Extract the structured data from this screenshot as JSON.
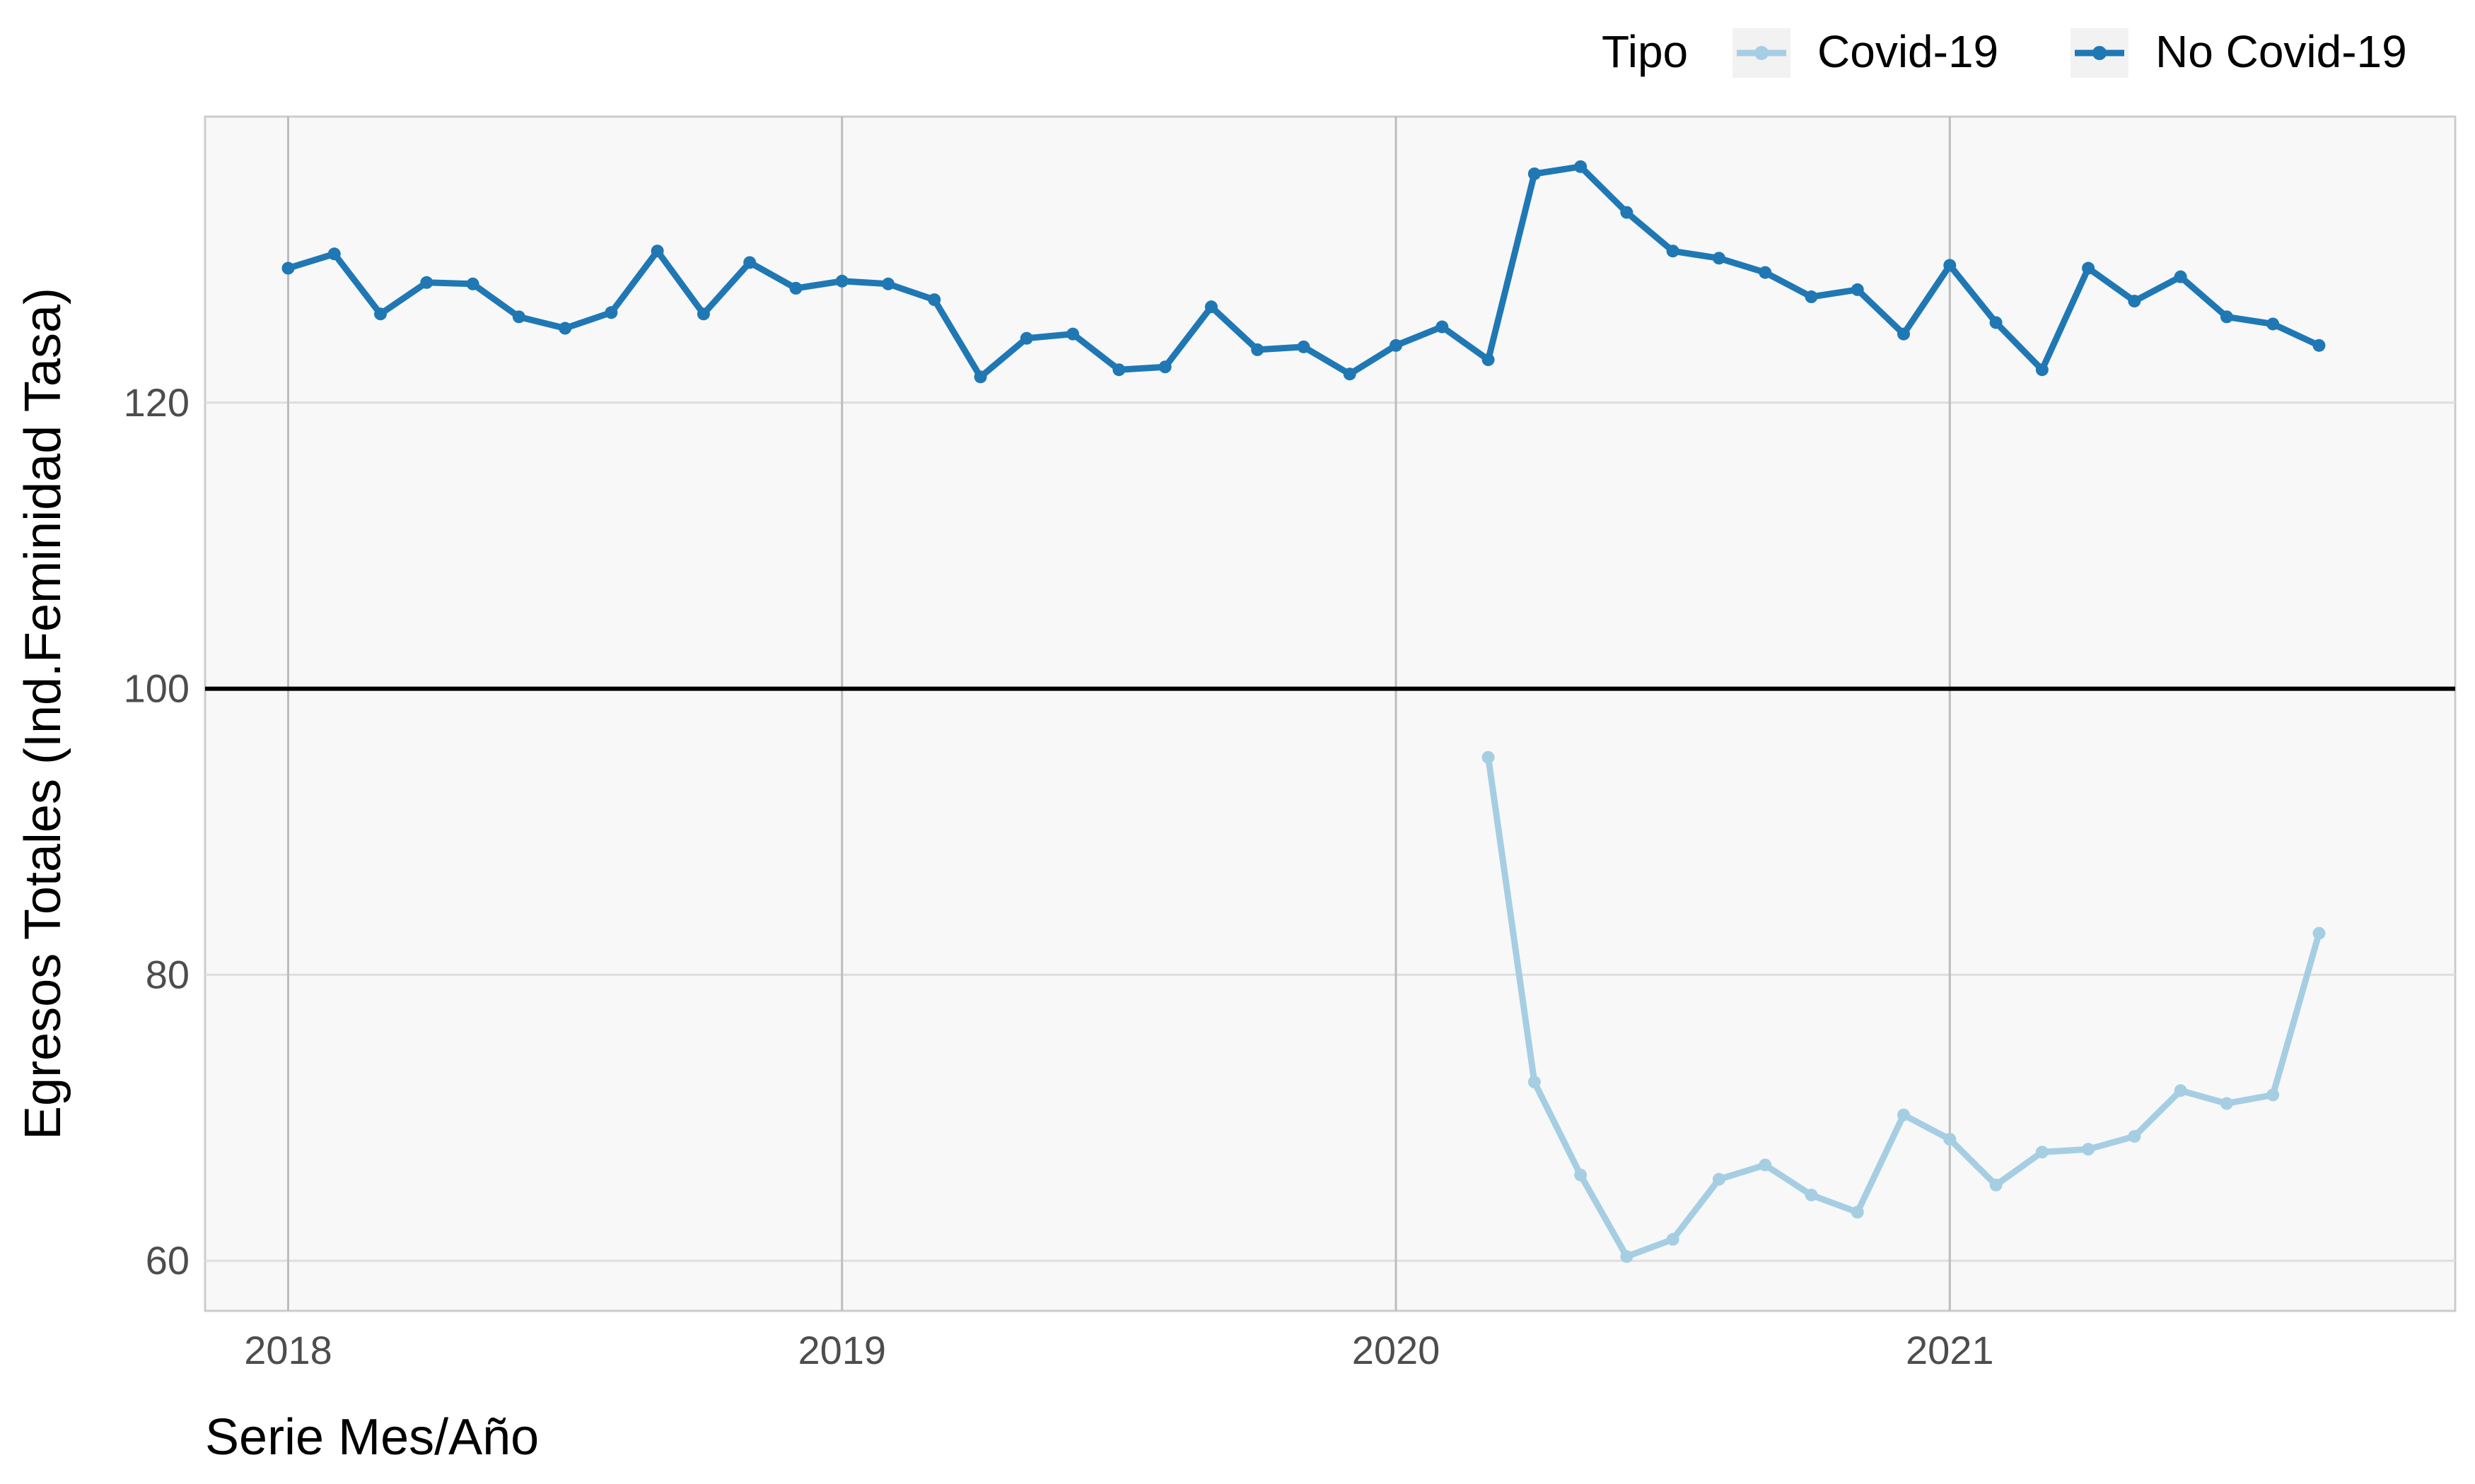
{
  "chart_data": {
    "type": "line",
    "title": "",
    "xlabel": "Serie Mes/Año",
    "ylabel": "Egresos Totales (Ind.Feminidad Tasa)",
    "x_ticks": [
      "2018",
      "2019",
      "2020",
      "2021"
    ],
    "y_ticks": [
      60,
      80,
      100,
      120
    ],
    "ylim": [
      56.5,
      140
    ],
    "xlim": [
      "2017-11",
      "2021-12"
    ],
    "grid": true,
    "reference_line": 100,
    "legend": {
      "title": "Tipo",
      "position": "top-right",
      "entries": [
        "Covid-19",
        "No Covid-19"
      ]
    },
    "series": [
      {
        "name": "Covid-19",
        "color": "#a6cee3",
        "x": [
          "2020-03",
          "2020-04",
          "2020-05",
          "2020-06",
          "2020-07",
          "2020-08",
          "2020-09",
          "2020-10",
          "2020-11",
          "2020-12",
          "2021-01",
          "2021-02",
          "2021-03",
          "2021-04",
          "2021-05",
          "2021-06",
          "2021-07",
          "2021-08",
          "2021-09"
        ],
        "values": [
          95.2,
          72.5,
          66.0,
          60.3,
          61.5,
          65.7,
          66.7,
          64.6,
          63.4,
          70.2,
          68.5,
          65.3,
          67.6,
          67.8,
          68.7,
          71.9,
          71.0,
          71.6,
          82.9
        ]
      },
      {
        "name": "No Covid-19",
        "color": "#1f78b4",
        "x": [
          "2018-01",
          "2018-02",
          "2018-03",
          "2018-04",
          "2018-05",
          "2018-06",
          "2018-07",
          "2018-08",
          "2018-09",
          "2018-10",
          "2018-11",
          "2018-12",
          "2019-01",
          "2019-02",
          "2019-03",
          "2019-04",
          "2019-05",
          "2019-06",
          "2019-07",
          "2019-08",
          "2019-09",
          "2019-10",
          "2019-11",
          "2019-12",
          "2020-01",
          "2020-02",
          "2020-03",
          "2020-04",
          "2020-05",
          "2020-06",
          "2020-07",
          "2020-08",
          "2020-09",
          "2020-10",
          "2020-11",
          "2020-12",
          "2021-01",
          "2021-02",
          "2021-03",
          "2021-04",
          "2021-05",
          "2021-06",
          "2021-07",
          "2021-08",
          "2021-09"
        ],
        "values": [
          129.4,
          130.4,
          126.2,
          128.4,
          128.3,
          126.0,
          125.2,
          126.3,
          130.6,
          126.2,
          129.8,
          128.0,
          128.5,
          128.3,
          127.2,
          121.8,
          124.5,
          124.8,
          122.3,
          122.5,
          126.7,
          123.7,
          123.9,
          122.0,
          124.0,
          125.3,
          123.0,
          136.0,
          136.5,
          133.3,
          130.6,
          130.1,
          129.1,
          127.4,
          127.9,
          124.8,
          129.6,
          125.6,
          122.3,
          129.4,
          127.1,
          128.8,
          126.0,
          125.5,
          124.0
        ]
      }
    ]
  }
}
